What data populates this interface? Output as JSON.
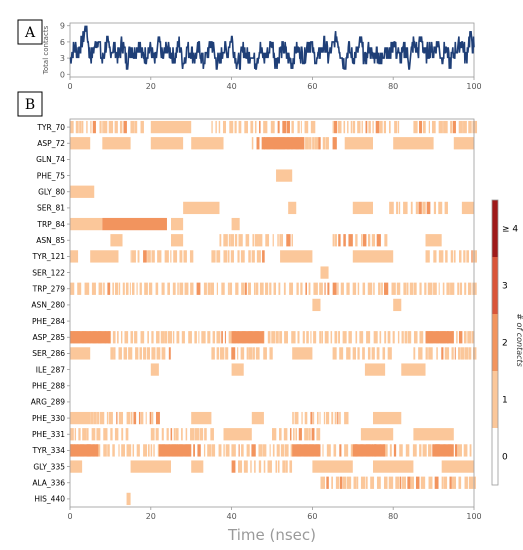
{
  "panels": {
    "a": "A",
    "b": "B"
  },
  "chart_data": [
    {
      "type": "line",
      "panel": "A",
      "ylabel": "Total contacts",
      "xlim": [
        0,
        100
      ],
      "ylim": [
        -0.5,
        9.5
      ],
      "xticks": [
        0,
        20,
        40,
        60,
        80,
        100
      ],
      "yticks": [
        0,
        3,
        6,
        9
      ],
      "color": "#1f3f77",
      "series": [
        {
          "x": [
            0,
            1,
            2,
            3,
            4,
            5,
            6,
            7,
            8,
            9,
            10,
            11,
            12,
            13,
            14,
            15,
            16,
            17,
            18,
            19,
            20,
            21,
            22,
            23,
            24,
            25,
            26,
            27,
            28,
            29,
            30,
            31,
            32,
            33,
            34,
            35,
            36,
            37,
            38,
            39,
            40,
            41,
            42,
            43,
            44,
            45,
            46,
            47,
            48,
            49,
            50,
            51,
            52,
            53,
            54,
            55,
            56,
            57,
            58,
            59,
            60,
            61,
            62,
            63,
            64,
            65,
            66,
            67,
            68,
            69,
            70,
            71,
            72,
            73,
            74,
            75,
            76,
            77,
            78,
            79,
            80,
            81,
            82,
            83,
            84,
            85,
            86,
            87,
            88,
            89,
            90,
            91,
            92,
            93,
            94,
            95,
            96,
            97,
            98,
            99,
            100
          ],
          "y": [
            3,
            5,
            4,
            6,
            9,
            3,
            5,
            7,
            2,
            6,
            4,
            5,
            3,
            6,
            2,
            5,
            4,
            6,
            3,
            4,
            5,
            2,
            6,
            3,
            5,
            4,
            3,
            6,
            2,
            5,
            4,
            3,
            5,
            2,
            4,
            6,
            3,
            2,
            5,
            4,
            7,
            3,
            2,
            5,
            3,
            4,
            2,
            5,
            3,
            4,
            6,
            2,
            4,
            5,
            3,
            2,
            5,
            4,
            3,
            6,
            5,
            2,
            4,
            6,
            3,
            5,
            7,
            4,
            2,
            5,
            3,
            4,
            6,
            2,
            5,
            3,
            4,
            2,
            5,
            3,
            6,
            4,
            3,
            5,
            2,
            6,
            4,
            7,
            3,
            5,
            4,
            6,
            3,
            5,
            2,
            4,
            5,
            6,
            3,
            7,
            5
          ]
        }
      ]
    },
    {
      "type": "heatmap",
      "panel": "B",
      "xlabel": "Time (nsec)",
      "xlim": [
        0,
        100
      ],
      "xticks": [
        0,
        20,
        40,
        60,
        80,
        100
      ],
      "rows": [
        "TYR_70",
        "ASP_72",
        "GLN_74",
        "PHE_75",
        "GLY_80",
        "SER_81",
        "TRP_84",
        "ASN_85",
        "TYR_121",
        "SER_122",
        "TRP_279",
        "ASN_280",
        "PHE_284",
        "ASP_285",
        "SER_286",
        "ILE_287",
        "PHE_288",
        "ARG_289",
        "PHE_330",
        "PHE_331",
        "TYR_334",
        "GLY_335",
        "ALA_336",
        "HIS_440"
      ],
      "colorbar": {
        "title": "# of contacts",
        "labels": [
          "0",
          "1",
          "2",
          "3",
          "≥ 4"
        ],
        "colors": [
          "#ffffff",
          "#fbc79a",
          "#f2945e",
          "#d9553a",
          "#9e1a1a"
        ]
      },
      "segments": [
        [
          [
            0,
            18,
            1
          ],
          [
            20,
            30,
            1
          ],
          [
            35,
            60,
            1
          ],
          [
            65,
            82,
            1
          ],
          [
            85,
            100,
            1
          ]
        ],
        [
          [
            0,
            5,
            1
          ],
          [
            8,
            15,
            1
          ],
          [
            20,
            28,
            1
          ],
          [
            30,
            38,
            1
          ],
          [
            45,
            65,
            1
          ],
          [
            48,
            58,
            2
          ],
          [
            68,
            75,
            1
          ],
          [
            80,
            90,
            1
          ],
          [
            95,
            100,
            1
          ]
        ],
        [],
        [
          [
            51,
            55,
            1
          ]
        ],
        [
          [
            0,
            6,
            1
          ]
        ],
        [
          [
            28,
            37,
            1
          ],
          [
            54,
            56,
            1
          ],
          [
            70,
            75,
            1
          ],
          [
            79,
            93,
            1
          ],
          [
            97,
            100,
            1
          ]
        ],
        [
          [
            0,
            8,
            1
          ],
          [
            8,
            24,
            2
          ],
          [
            25,
            28,
            1
          ],
          [
            40,
            42,
            1
          ]
        ],
        [
          [
            10,
            13,
            1
          ],
          [
            25,
            28,
            1
          ],
          [
            37,
            55,
            1
          ],
          [
            65,
            78,
            1
          ],
          [
            88,
            92,
            1
          ]
        ],
        [
          [
            0,
            2,
            1
          ],
          [
            5,
            12,
            1
          ],
          [
            15,
            30,
            1
          ],
          [
            35,
            48,
            1
          ],
          [
            52,
            60,
            1
          ],
          [
            70,
            80,
            1
          ],
          [
            88,
            100,
            1
          ]
        ],
        [
          [
            62,
            64,
            1
          ]
        ],
        [
          [
            0,
            100,
            1
          ]
        ],
        [
          [
            60,
            62,
            1
          ],
          [
            80,
            82,
            1
          ]
        ],
        [],
        [
          [
            0,
            100,
            1
          ],
          [
            0,
            10,
            2
          ],
          [
            40,
            48,
            2
          ],
          [
            88,
            95,
            2
          ]
        ],
        [
          [
            0,
            5,
            1
          ],
          [
            10,
            25,
            1
          ],
          [
            35,
            50,
            1
          ],
          [
            55,
            60,
            1
          ],
          [
            65,
            80,
            1
          ],
          [
            85,
            100,
            1
          ]
        ],
        [
          [
            20,
            22,
            1
          ],
          [
            40,
            43,
            1
          ],
          [
            73,
            78,
            1
          ],
          [
            82,
            88,
            1
          ]
        ],
        [],
        [],
        [
          [
            0,
            5,
            1
          ],
          [
            5,
            22,
            1
          ],
          [
            30,
            35,
            1
          ],
          [
            45,
            48,
            1
          ],
          [
            55,
            68,
            1
          ],
          [
            75,
            82,
            1
          ]
        ],
        [
          [
            0,
            15,
            1
          ],
          [
            20,
            35,
            1
          ],
          [
            38,
            45,
            1
          ],
          [
            50,
            62,
            1
          ],
          [
            72,
            80,
            1
          ],
          [
            85,
            95,
            1
          ]
        ],
        [
          [
            0,
            100,
            1
          ],
          [
            0,
            7,
            2
          ],
          [
            22,
            30,
            2
          ],
          [
            55,
            62,
            2
          ],
          [
            70,
            78,
            2
          ],
          [
            90,
            95,
            2
          ]
        ],
        [
          [
            0,
            3,
            1
          ],
          [
            15,
            25,
            1
          ],
          [
            30,
            33,
            1
          ],
          [
            40,
            55,
            1
          ],
          [
            60,
            70,
            1
          ],
          [
            75,
            85,
            1
          ],
          [
            92,
            100,
            1
          ]
        ],
        [
          [
            62,
            100,
            1
          ]
        ],
        [
          [
            14,
            15,
            1
          ]
        ]
      ]
    }
  ]
}
